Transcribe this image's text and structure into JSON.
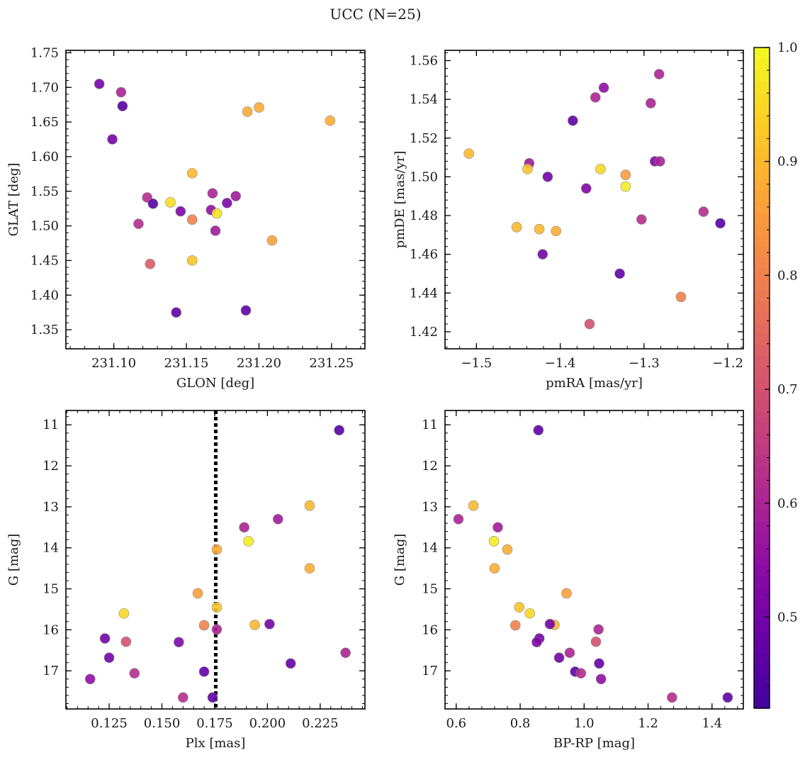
{
  "figure": {
    "suptitle": "UCC (N=25)"
  },
  "colorbar": {
    "range": [
      0.42,
      1.0
    ],
    "ticks": [
      0.5,
      0.6,
      0.7,
      0.8,
      0.9,
      1.0
    ],
    "tick_labels": [
      "0.5",
      "0.6",
      "0.7",
      "0.8",
      "0.9",
      "1.0"
    ],
    "colormap": "plasma"
  },
  "chart_data": [
    {
      "type": "scatter",
      "xlabel": "GLON [deg]",
      "ylabel": "GLAT [deg]",
      "xlim": [
        231.067,
        231.273
      ],
      "ylim": [
        1.3225,
        1.7535
      ],
      "xticks": [
        231.1,
        231.15,
        231.2,
        231.25
      ],
      "xtick_labels": [
        "231.10",
        "231.15",
        "231.20",
        "231.25"
      ],
      "yticks": [
        1.35,
        1.4,
        1.45,
        1.5,
        1.55,
        1.6,
        1.65,
        1.7,
        1.75
      ],
      "ytick_labels": [
        "1.35",
        "1.40",
        "1.45",
        "1.50",
        "1.55",
        "1.60",
        "1.65",
        "1.70",
        "1.75"
      ],
      "invert_y": false,
      "x": [
        231.09,
        231.105,
        231.106,
        231.099,
        231.192,
        231.2,
        231.249,
        231.154,
        231.123,
        231.139,
        231.127,
        231.146,
        231.168,
        231.178,
        231.184,
        231.167,
        231.171,
        231.154,
        231.117,
        231.17,
        231.209,
        231.125,
        231.154,
        231.143,
        231.191
      ],
      "y": [
        1.705,
        1.693,
        1.673,
        1.625,
        1.665,
        1.671,
        1.652,
        1.576,
        1.541,
        1.534,
        1.532,
        1.521,
        1.547,
        1.533,
        1.543,
        1.523,
        1.518,
        1.509,
        1.503,
        1.493,
        1.479,
        1.445,
        1.45,
        1.375,
        1.378
      ],
      "c": [
        0.5,
        0.6,
        0.45,
        0.5,
        0.88,
        0.88,
        0.88,
        0.9,
        0.62,
        0.96,
        0.45,
        0.52,
        0.6,
        0.52,
        0.58,
        0.55,
        0.97,
        0.8,
        0.62,
        0.58,
        0.86,
        0.72,
        0.92,
        0.47,
        0.47
      ]
    },
    {
      "type": "scatter",
      "xlabel": "pmRA [mas/yr]",
      "ylabel": "pmDE [mas/yr]",
      "xlim": [
        -1.5375,
        -1.1815
      ],
      "ylim": [
        1.4112,
        1.5653
      ],
      "xticks": [
        -1.5,
        -1.4,
        -1.3,
        -1.2
      ],
      "xtick_labels": [
        "−1.5",
        "−1.4",
        "−1.3",
        "−1.2"
      ],
      "yticks": [
        1.42,
        1.44,
        1.46,
        1.48,
        1.5,
        1.52,
        1.54,
        1.56
      ],
      "ytick_labels": [
        "1.42",
        "1.44",
        "1.46",
        "1.48",
        "1.50",
        "1.52",
        "1.54",
        "1.56"
      ],
      "invert_y": false,
      "x": [
        -1.282,
        -1.348,
        -1.358,
        -1.292,
        -1.385,
        -1.509,
        -1.437,
        -1.439,
        -1.415,
        -1.352,
        -1.322,
        -1.322,
        -1.287,
        -1.281,
        -1.369,
        -1.229,
        -1.209,
        -1.303,
        -1.452,
        -1.425,
        -1.405,
        -1.421,
        -1.329,
        -1.256,
        -1.365
      ],
      "y": [
        1.553,
        1.546,
        1.541,
        1.538,
        1.529,
        1.512,
        1.507,
        1.504,
        1.5,
        1.504,
        1.501,
        1.495,
        1.508,
        1.508,
        1.494,
        1.482,
        1.476,
        1.478,
        1.474,
        1.473,
        1.472,
        1.46,
        1.45,
        1.438,
        1.424
      ],
      "c": [
        0.6,
        0.55,
        0.6,
        0.6,
        0.47,
        0.9,
        0.58,
        0.92,
        0.5,
        0.95,
        0.85,
        0.98,
        0.52,
        0.6,
        0.52,
        0.62,
        0.45,
        0.62,
        0.9,
        0.9,
        0.88,
        0.5,
        0.47,
        0.8,
        0.7
      ]
    },
    {
      "type": "scatter",
      "xlabel": "Plx [mas]",
      "ylabel": "G [mag]",
      "xlim": [
        0.1045,
        0.2462
      ],
      "ylim": [
        10.65,
        17.93
      ],
      "xticks": [
        0.125,
        0.15,
        0.175,
        0.2,
        0.225
      ],
      "xtick_labels": [
        "0.125",
        "0.150",
        "0.175",
        "0.200",
        "0.225"
      ],
      "yticks": [
        11,
        12,
        13,
        14,
        15,
        16,
        17
      ],
      "ytick_labels": [
        "11",
        "12",
        "13",
        "14",
        "15",
        "16",
        "17"
      ],
      "invert_y": true,
      "vline": 0.1755,
      "x": [
        0.234,
        0.22,
        0.189,
        0.205,
        0.191,
        0.176,
        0.22,
        0.167,
        0.176,
        0.132,
        0.17,
        0.176,
        0.194,
        0.201,
        0.123,
        0.133,
        0.158,
        0.125,
        0.237,
        0.211,
        0.137,
        0.17,
        0.116,
        0.16,
        0.174
      ],
      "y": [
        11.13,
        12.97,
        13.5,
        13.3,
        13.84,
        14.04,
        14.5,
        15.11,
        15.45,
        15.6,
        15.89,
        15.99,
        15.88,
        15.86,
        16.21,
        16.29,
        16.3,
        16.68,
        16.56,
        16.82,
        17.06,
        17.02,
        17.2,
        17.65,
        17.65
      ],
      "c": [
        0.45,
        0.9,
        0.6,
        0.58,
        0.98,
        0.88,
        0.88,
        0.86,
        0.92,
        0.95,
        0.8,
        0.6,
        0.9,
        0.5,
        0.5,
        0.7,
        0.52,
        0.5,
        0.6,
        0.48,
        0.62,
        0.47,
        0.55,
        0.62,
        0.47
      ]
    },
    {
      "type": "scatter",
      "xlabel": "BP-RP [mag]",
      "ylabel": "G [mag]",
      "xlim": [
        0.565,
        1.498
      ],
      "ylim": [
        10.65,
        17.93
      ],
      "xticks": [
        0.6,
        0.8,
        1.0,
        1.2,
        1.4
      ],
      "xtick_labels": [
        "0.6",
        "0.8",
        "1.0",
        "1.2",
        "1.4"
      ],
      "yticks": [
        11,
        12,
        13,
        14,
        15,
        16,
        17
      ],
      "ytick_labels": [
        "11",
        "12",
        "13",
        "14",
        "15",
        "16",
        "17"
      ],
      "invert_y": true,
      "x": [
        0.857,
        0.654,
        0.607,
        0.73,
        0.718,
        0.76,
        0.72,
        0.945,
        0.797,
        0.83,
        0.785,
        0.907,
        0.893,
        1.045,
        0.86,
        0.852,
        0.955,
        1.037,
        0.922,
        1.047,
        0.972,
        0.99,
        1.053,
        1.275,
        1.449
      ],
      "y": [
        11.13,
        12.97,
        13.3,
        13.5,
        13.84,
        14.04,
        14.5,
        15.11,
        15.45,
        15.6,
        15.89,
        15.88,
        15.86,
        15.99,
        16.21,
        16.3,
        16.56,
        16.29,
        16.68,
        16.82,
        17.02,
        17.06,
        17.2,
        17.65,
        17.65
      ],
      "c": [
        0.47,
        0.9,
        0.6,
        0.58,
        0.98,
        0.88,
        0.88,
        0.86,
        0.92,
        0.95,
        0.8,
        0.9,
        0.5,
        0.6,
        0.5,
        0.52,
        0.6,
        0.7,
        0.5,
        0.48,
        0.47,
        0.62,
        0.55,
        0.62,
        0.47
      ]
    }
  ]
}
